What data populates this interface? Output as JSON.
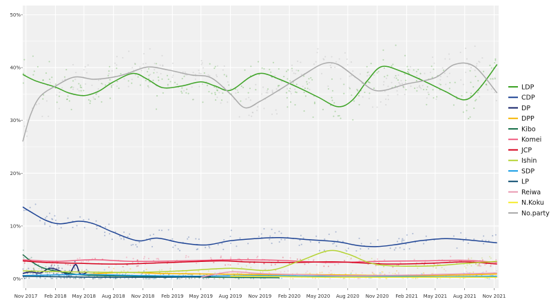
{
  "chart_data": {
    "type": "line",
    "title": "",
    "xlabel": "",
    "ylabel": "",
    "ylim": [
      0,
      51
    ],
    "y_ticks": [
      {
        "value": 0,
        "label": "0%"
      },
      {
        "value": 10,
        "label": "10%"
      },
      {
        "value": 20,
        "label": "20%"
      },
      {
        "value": 30,
        "label": "30%"
      },
      {
        "value": 40,
        "label": "40%"
      },
      {
        "value": 50,
        "label": "50%"
      }
    ],
    "x_start": "2017-10-22",
    "x_end": "2021-11-15",
    "x_ticks": [
      {
        "date": "2017-11-01",
        "label": "Nov 2017"
      },
      {
        "date": "2018-02-01",
        "label": "Feb 2018"
      },
      {
        "date": "2018-05-01",
        "label": "May 2018"
      },
      {
        "date": "2018-08-01",
        "label": "Aug 2018"
      },
      {
        "date": "2018-11-01",
        "label": "Nov 2018"
      },
      {
        "date": "2019-02-01",
        "label": "Feb 2019"
      },
      {
        "date": "2019-05-01",
        "label": "May 2019"
      },
      {
        "date": "2019-08-01",
        "label": "Aug 2019"
      },
      {
        "date": "2019-11-01",
        "label": "Nov 2019"
      },
      {
        "date": "2020-02-01",
        "label": "Feb 2020"
      },
      {
        "date": "2020-05-01",
        "label": "May 2020"
      },
      {
        "date": "2020-08-01",
        "label": "Aug 2020"
      },
      {
        "date": "2020-11-01",
        "label": "Nov 2020"
      },
      {
        "date": "2021-02-01",
        "label": "Feb 2021"
      },
      {
        "date": "2021-05-01",
        "label": "May 2021"
      },
      {
        "date": "2021-08-01",
        "label": "Aug 2021"
      },
      {
        "date": "2021-11-01",
        "label": "Nov 2021"
      }
    ],
    "grid": true,
    "legend_position": "right",
    "series": [
      {
        "name": "LDP",
        "color": "#3ca324",
        "points": [
          [
            "2017-10-22",
            38.7
          ],
          [
            "2017-12-01",
            37.5
          ],
          [
            "2018-02-01",
            36.3
          ],
          [
            "2018-03-15",
            35.2
          ],
          [
            "2018-05-01",
            34.7
          ],
          [
            "2018-06-15",
            35.5
          ],
          [
            "2018-08-01",
            37.3
          ],
          [
            "2018-10-01",
            38.9
          ],
          [
            "2018-11-15",
            37.8
          ],
          [
            "2019-01-01",
            36.2
          ],
          [
            "2019-03-01",
            36.5
          ],
          [
            "2019-05-01",
            37.3
          ],
          [
            "2019-06-15",
            36.5
          ],
          [
            "2019-08-01",
            35.7
          ],
          [
            "2019-10-01",
            38.2
          ],
          [
            "2019-11-10",
            38.9
          ],
          [
            "2020-01-01",
            37.8
          ],
          [
            "2020-03-01",
            36.2
          ],
          [
            "2020-05-01",
            34.4
          ],
          [
            "2020-07-01",
            32.6
          ],
          [
            "2020-08-15",
            33.8
          ],
          [
            "2020-10-01",
            37.5
          ],
          [
            "2020-11-15",
            40.2
          ],
          [
            "2021-01-15",
            39.3
          ],
          [
            "2021-04-01",
            37.3
          ],
          [
            "2021-06-01",
            35.5
          ],
          [
            "2021-08-01",
            33.9
          ],
          [
            "2021-09-15",
            36.0
          ],
          [
            "2021-11-10",
            40.6
          ]
        ]
      },
      {
        "name": "No.party",
        "color": "#aaaaaa",
        "points": [
          [
            "2017-10-22",
            26.0
          ],
          [
            "2017-11-15",
            31.0
          ],
          [
            "2017-12-15",
            34.5
          ],
          [
            "2018-02-01",
            36.5
          ],
          [
            "2018-04-01",
            38.2
          ],
          [
            "2018-06-01",
            37.8
          ],
          [
            "2018-08-01",
            38.2
          ],
          [
            "2018-09-15",
            38.9
          ],
          [
            "2018-11-15",
            40.1
          ],
          [
            "2019-01-15",
            39.6
          ],
          [
            "2019-04-01",
            38.6
          ],
          [
            "2019-06-01",
            38.1
          ],
          [
            "2019-08-01",
            35.0
          ],
          [
            "2019-09-15",
            32.4
          ],
          [
            "2019-11-01",
            33.6
          ],
          [
            "2020-01-01",
            35.8
          ],
          [
            "2020-03-15",
            38.6
          ],
          [
            "2020-05-15",
            40.7
          ],
          [
            "2020-07-01",
            40.6
          ],
          [
            "2020-09-01",
            37.9
          ],
          [
            "2020-11-01",
            35.6
          ],
          [
            "2021-02-01",
            36.9
          ],
          [
            "2021-05-01",
            38.1
          ],
          [
            "2021-07-01",
            40.6
          ],
          [
            "2021-09-01",
            40.2
          ],
          [
            "2021-11-10",
            35.2
          ]
        ]
      },
      {
        "name": "CDP",
        "color": "#1d4394",
        "points": [
          [
            "2017-10-22",
            13.6
          ],
          [
            "2017-11-15",
            12.7
          ],
          [
            "2018-01-01",
            11.1
          ],
          [
            "2018-02-15",
            10.4
          ],
          [
            "2018-04-15",
            10.9
          ],
          [
            "2018-06-01",
            10.4
          ],
          [
            "2018-08-01",
            8.8
          ],
          [
            "2018-10-15",
            7.2
          ],
          [
            "2018-12-15",
            7.7
          ],
          [
            "2019-03-01",
            6.8
          ],
          [
            "2019-05-15",
            6.4
          ],
          [
            "2019-08-01",
            7.2
          ],
          [
            "2019-10-15",
            7.6
          ],
          [
            "2020-01-01",
            7.8
          ],
          [
            "2020-04-01",
            7.4
          ],
          [
            "2020-07-01",
            7.0
          ],
          [
            "2020-09-01",
            6.3
          ],
          [
            "2020-11-01",
            6.1
          ],
          [
            "2021-01-01",
            6.5
          ],
          [
            "2021-03-15",
            7.2
          ],
          [
            "2021-06-01",
            7.6
          ],
          [
            "2021-08-01",
            7.4
          ],
          [
            "2021-11-10",
            6.8
          ]
        ]
      },
      {
        "name": "DP",
        "color": "#15226a",
        "points": [
          [
            "2017-10-22",
            1.0
          ],
          [
            "2017-11-15",
            1.3
          ],
          [
            "2017-12-15",
            1.1
          ],
          [
            "2018-01-15",
            2.0
          ],
          [
            "2018-02-15",
            1.5
          ],
          [
            "2018-03-15",
            0.9
          ],
          [
            "2018-04-05",
            2.7
          ],
          [
            "2018-04-20",
            0.9
          ],
          [
            "2018-05-10",
            1.2
          ]
        ]
      },
      {
        "name": "DPP",
        "color": "#f6b500",
        "points": [
          [
            "2018-05-01",
            0.8
          ],
          [
            "2018-09-01",
            1.2
          ],
          [
            "2019-01-01",
            1.0
          ],
          [
            "2019-06-01",
            0.9
          ],
          [
            "2019-11-01",
            0.8
          ],
          [
            "2020-04-01",
            0.8
          ],
          [
            "2020-09-01",
            0.7
          ],
          [
            "2021-02-01",
            0.6
          ],
          [
            "2021-07-01",
            0.7
          ],
          [
            "2021-11-10",
            0.9
          ]
        ]
      },
      {
        "name": "Kibo",
        "color": "#19704a",
        "points": [
          [
            "2017-10-22",
            4.6
          ],
          [
            "2017-11-15",
            3.4
          ],
          [
            "2017-12-15",
            2.3
          ],
          [
            "2018-01-15",
            1.7
          ],
          [
            "2018-03-01",
            1.2
          ],
          [
            "2018-05-01",
            0.7
          ],
          [
            "2018-10-01",
            0.5
          ],
          [
            "2019-06-01",
            0.3
          ],
          [
            "2020-01-01",
            0.2
          ]
        ]
      },
      {
        "name": "Komei",
        "color": "#f05a7e",
        "points": [
          [
            "2017-10-22",
            3.6
          ],
          [
            "2018-02-01",
            3.3
          ],
          [
            "2018-06-01",
            3.6
          ],
          [
            "2018-10-01",
            3.3
          ],
          [
            "2019-03-01",
            3.4
          ],
          [
            "2019-08-01",
            3.6
          ],
          [
            "2020-01-01",
            3.5
          ],
          [
            "2020-06-01",
            3.1
          ],
          [
            "2020-11-01",
            3.3
          ],
          [
            "2021-04-01",
            3.4
          ],
          [
            "2021-08-01",
            3.5
          ],
          [
            "2021-11-10",
            3.1
          ]
        ]
      },
      {
        "name": "JCP",
        "color": "#d6001c",
        "points": [
          [
            "2017-10-22",
            3.4
          ],
          [
            "2018-01-01",
            3.1
          ],
          [
            "2018-05-01",
            2.9
          ],
          [
            "2018-09-01",
            2.8
          ],
          [
            "2019-02-01",
            3.1
          ],
          [
            "2019-07-01",
            3.4
          ],
          [
            "2019-09-15",
            3.2
          ],
          [
            "2020-02-01",
            3.1
          ],
          [
            "2020-07-01",
            3.2
          ],
          [
            "2020-12-01",
            2.8
          ],
          [
            "2021-04-01",
            2.9
          ],
          [
            "2021-08-01",
            3.2
          ],
          [
            "2021-11-10",
            2.8
          ]
        ]
      },
      {
        "name": "Ishin",
        "color": "#b5d334",
        "points": [
          [
            "2017-10-22",
            1.5
          ],
          [
            "2018-04-01",
            1.3
          ],
          [
            "2018-10-01",
            1.2
          ],
          [
            "2019-03-01",
            1.5
          ],
          [
            "2019-08-01",
            2.0
          ],
          [
            "2019-12-01",
            1.6
          ],
          [
            "2020-03-01",
            3.3
          ],
          [
            "2020-06-01",
            5.3
          ],
          [
            "2020-08-01",
            4.7
          ],
          [
            "2020-11-01",
            2.7
          ],
          [
            "2021-04-01",
            2.4
          ],
          [
            "2021-08-01",
            2.9
          ],
          [
            "2021-11-10",
            3.3
          ]
        ]
      },
      {
        "name": "SDP",
        "color": "#1ea0e6",
        "points": [
          [
            "2017-10-22",
            0.6
          ],
          [
            "2018-05-01",
            0.8
          ],
          [
            "2018-11-01",
            0.6
          ],
          [
            "2019-05-01",
            0.5
          ],
          [
            "2019-11-01",
            0.6
          ],
          [
            "2020-05-01",
            0.5
          ],
          [
            "2020-11-01",
            0.5
          ],
          [
            "2021-05-01",
            0.4
          ],
          [
            "2021-11-10",
            0.5
          ]
        ]
      },
      {
        "name": "LP",
        "color": "#0a4a6e",
        "points": [
          [
            "2017-10-22",
            0.5
          ],
          [
            "2018-06-01",
            0.3
          ],
          [
            "2019-01-01",
            0.3
          ],
          [
            "2019-06-01",
            0.4
          ]
        ]
      },
      {
        "name": "Reiwa",
        "color": "#e998b1",
        "points": [
          [
            "2019-05-01",
            0.3
          ],
          [
            "2019-08-01",
            1.3
          ],
          [
            "2019-11-01",
            1.0
          ],
          [
            "2020-03-01",
            0.8
          ],
          [
            "2020-08-01",
            0.6
          ],
          [
            "2021-02-01",
            0.7
          ],
          [
            "2021-07-01",
            0.9
          ],
          [
            "2021-11-10",
            1.1
          ]
        ]
      },
      {
        "name": "N.Koku",
        "color": "#f5ea2a",
        "points": [
          [
            "2019-08-01",
            0.5
          ],
          [
            "2020-01-01",
            0.4
          ],
          [
            "2020-06-01",
            0.3
          ],
          [
            "2021-01-01",
            0.3
          ],
          [
            "2021-11-10",
            0.3
          ]
        ]
      }
    ],
    "legend": [
      "LDP",
      "CDP",
      "DP",
      "DPP",
      "Kibo",
      "Komei",
      "JCP",
      "Ishin",
      "SDP",
      "LP",
      "Reiwa",
      "N.Koku",
      "No.party"
    ]
  }
}
